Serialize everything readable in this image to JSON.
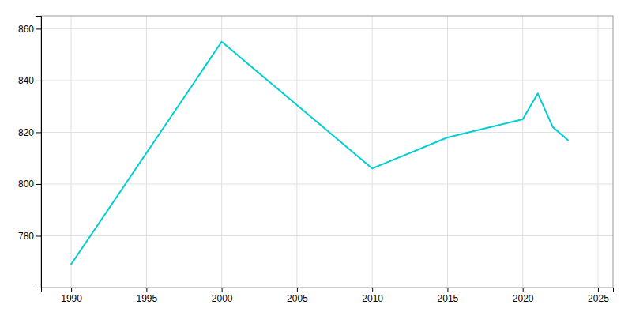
{
  "chart_data": {
    "type": "line",
    "x": [
      1990,
      2000,
      2010,
      2015,
      2020,
      2021,
      2022,
      2023
    ],
    "values": [
      769,
      855,
      806,
      818,
      825,
      835,
      822,
      817
    ],
    "color": "#00CED1",
    "xlim": [
      1988,
      2026
    ],
    "ylim": [
      760,
      865
    ],
    "xticks": [
      1990,
      1995,
      2000,
      2005,
      2010,
      2015,
      2020,
      2025
    ],
    "yticks": [
      780,
      800,
      820,
      840,
      860
    ],
    "grid": true
  }
}
